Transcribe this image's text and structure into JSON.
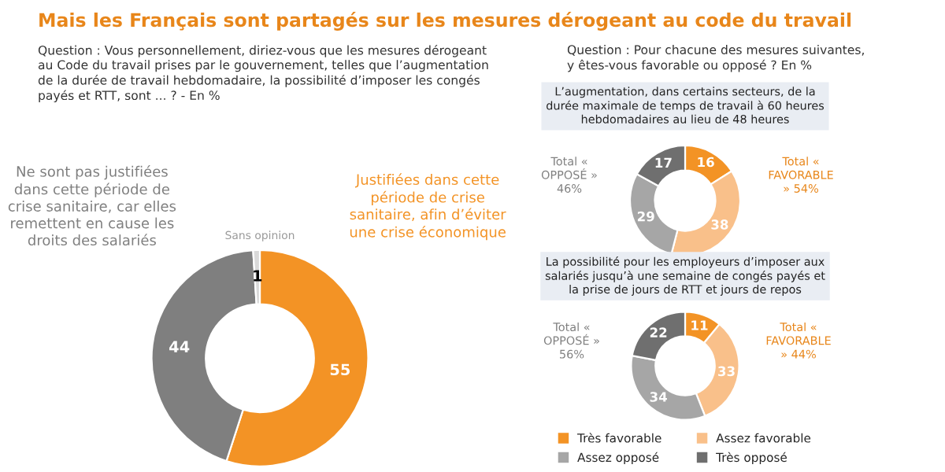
{
  "chart_data": [
    {
      "type": "donut",
      "title": "Mais les Français sont partagés sur les mesures dérogeant au code du travail",
      "subtitle": "Question : Vous personnellement, diriez-vous que les mesures dérogeant au Code du travail prises par le gouvernement, telles que l’augmentation de la durée de travail hebdomadaire, la possibilité d’imposer les congés payés et RTT, sont ... ? - En %",
      "categories": [
        "Justifiées dans cette période de crise sanitaire, afin d’éviter une crise économique",
        "Ne sont pas justifiées dans cette période de crise sanitaire, car elles remettent en cause les droits des salariés",
        "Sans opinion"
      ],
      "values": [
        55,
        44,
        1
      ],
      "colors": [
        "#f39325",
        "#7f7f7f",
        "#d9d9d9"
      ],
      "data_labels": true
    },
    {
      "type": "donut",
      "subtitle": "Question : Pour chacune des mesures suivantes, y êtes-vous favorable ou opposé ? En %",
      "title": "L’augmentation, dans certains secteurs, de la durée maximale de temps de travail à 60 heures hebdomadaires au lieu de 48 heures",
      "categories": [
        null,
        null,
        null,
        null
      ],
      "values": [
        16,
        38,
        29,
        17
      ],
      "colors": [
        "#f39325",
        "#f9c08a",
        "#a6a6a6",
        "#6f6f6f"
      ],
      "data_labels": true,
      "annotations": [
        "Total « OPPOSÉ » 46%",
        "Total « FAVORABLE » 54%"
      ]
    },
    {
      "type": "donut",
      "title": "La possibilité pour les employeurs d’imposer aux salariés jusqu’à une semaine de congés payés et la prise de jours de RTT et jours de repos",
      "categories": [
        "Très favorable",
        "Assez favorable",
        "Assez opposé",
        "Très opposé"
      ],
      "values": [
        11,
        33,
        34,
        22
      ],
      "colors": [
        "#f39325",
        "#f9c08a",
        "#a6a6a6",
        "#6f6f6f"
      ],
      "data_labels": true,
      "legend": "bottom",
      "annotations": [
        "Total « OPPOSÉ » 56%",
        "Total « FAVORABLE » 44%"
      ]
    }
  ]
}
